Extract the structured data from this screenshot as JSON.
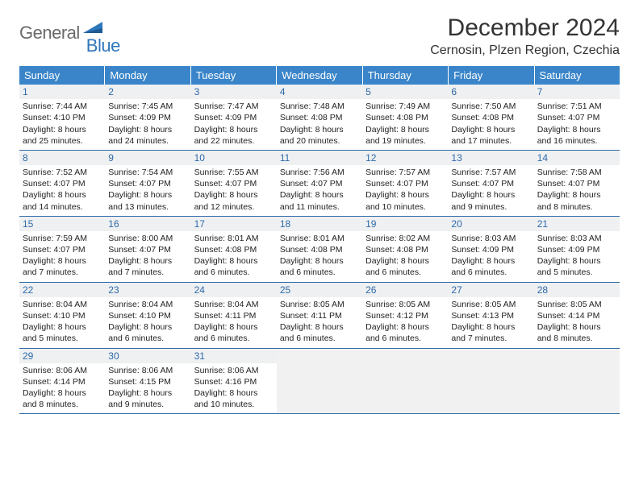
{
  "logo": {
    "text1": "General",
    "text2": "Blue"
  },
  "title": "December 2024",
  "location": "Cernosin, Plzen Region, Czechia",
  "colors": {
    "header_bg": "#3a85c9",
    "header_text": "#ffffff",
    "daynum_bg": "#eef0f2",
    "daynum_text": "#2f6aa8",
    "rule": "#2f6aa8",
    "logo_gray": "#6a6a6a",
    "logo_blue": "#2f77bb"
  },
  "typography": {
    "title_fontsize": 30,
    "location_fontsize": 16,
    "weekday_fontsize": 13,
    "body_fontsize": 10.5
  },
  "weekdays": [
    "Sunday",
    "Monday",
    "Tuesday",
    "Wednesday",
    "Thursday",
    "Friday",
    "Saturday"
  ],
  "weeks": [
    [
      {
        "n": "1",
        "sr": "7:44 AM",
        "ss": "4:10 PM",
        "dl": "8 hours and 25 minutes."
      },
      {
        "n": "2",
        "sr": "7:45 AM",
        "ss": "4:09 PM",
        "dl": "8 hours and 24 minutes."
      },
      {
        "n": "3",
        "sr": "7:47 AM",
        "ss": "4:09 PM",
        "dl": "8 hours and 22 minutes."
      },
      {
        "n": "4",
        "sr": "7:48 AM",
        "ss": "4:08 PM",
        "dl": "8 hours and 20 minutes."
      },
      {
        "n": "5",
        "sr": "7:49 AM",
        "ss": "4:08 PM",
        "dl": "8 hours and 19 minutes."
      },
      {
        "n": "6",
        "sr": "7:50 AM",
        "ss": "4:08 PM",
        "dl": "8 hours and 17 minutes."
      },
      {
        "n": "7",
        "sr": "7:51 AM",
        "ss": "4:07 PM",
        "dl": "8 hours and 16 minutes."
      }
    ],
    [
      {
        "n": "8",
        "sr": "7:52 AM",
        "ss": "4:07 PM",
        "dl": "8 hours and 14 minutes."
      },
      {
        "n": "9",
        "sr": "7:54 AM",
        "ss": "4:07 PM",
        "dl": "8 hours and 13 minutes."
      },
      {
        "n": "10",
        "sr": "7:55 AM",
        "ss": "4:07 PM",
        "dl": "8 hours and 12 minutes."
      },
      {
        "n": "11",
        "sr": "7:56 AM",
        "ss": "4:07 PM",
        "dl": "8 hours and 11 minutes."
      },
      {
        "n": "12",
        "sr": "7:57 AM",
        "ss": "4:07 PM",
        "dl": "8 hours and 10 minutes."
      },
      {
        "n": "13",
        "sr": "7:57 AM",
        "ss": "4:07 PM",
        "dl": "8 hours and 9 minutes."
      },
      {
        "n": "14",
        "sr": "7:58 AM",
        "ss": "4:07 PM",
        "dl": "8 hours and 8 minutes."
      }
    ],
    [
      {
        "n": "15",
        "sr": "7:59 AM",
        "ss": "4:07 PM",
        "dl": "8 hours and 7 minutes."
      },
      {
        "n": "16",
        "sr": "8:00 AM",
        "ss": "4:07 PM",
        "dl": "8 hours and 7 minutes."
      },
      {
        "n": "17",
        "sr": "8:01 AM",
        "ss": "4:08 PM",
        "dl": "8 hours and 6 minutes."
      },
      {
        "n": "18",
        "sr": "8:01 AM",
        "ss": "4:08 PM",
        "dl": "8 hours and 6 minutes."
      },
      {
        "n": "19",
        "sr": "8:02 AM",
        "ss": "4:08 PM",
        "dl": "8 hours and 6 minutes."
      },
      {
        "n": "20",
        "sr": "8:03 AM",
        "ss": "4:09 PM",
        "dl": "8 hours and 6 minutes."
      },
      {
        "n": "21",
        "sr": "8:03 AM",
        "ss": "4:09 PM",
        "dl": "8 hours and 5 minutes."
      }
    ],
    [
      {
        "n": "22",
        "sr": "8:04 AM",
        "ss": "4:10 PM",
        "dl": "8 hours and 5 minutes."
      },
      {
        "n": "23",
        "sr": "8:04 AM",
        "ss": "4:10 PM",
        "dl": "8 hours and 6 minutes."
      },
      {
        "n": "24",
        "sr": "8:04 AM",
        "ss": "4:11 PM",
        "dl": "8 hours and 6 minutes."
      },
      {
        "n": "25",
        "sr": "8:05 AM",
        "ss": "4:11 PM",
        "dl": "8 hours and 6 minutes."
      },
      {
        "n": "26",
        "sr": "8:05 AM",
        "ss": "4:12 PM",
        "dl": "8 hours and 6 minutes."
      },
      {
        "n": "27",
        "sr": "8:05 AM",
        "ss": "4:13 PM",
        "dl": "8 hours and 7 minutes."
      },
      {
        "n": "28",
        "sr": "8:05 AM",
        "ss": "4:14 PM",
        "dl": "8 hours and 8 minutes."
      }
    ],
    [
      {
        "n": "29",
        "sr": "8:06 AM",
        "ss": "4:14 PM",
        "dl": "8 hours and 8 minutes."
      },
      {
        "n": "30",
        "sr": "8:06 AM",
        "ss": "4:15 PM",
        "dl": "8 hours and 9 minutes."
      },
      {
        "n": "31",
        "sr": "8:06 AM",
        "ss": "4:16 PM",
        "dl": "8 hours and 10 minutes."
      },
      null,
      null,
      null,
      null
    ]
  ],
  "labels": {
    "sunrise": "Sunrise: ",
    "sunset": "Sunset: ",
    "daylight": "Daylight: "
  }
}
